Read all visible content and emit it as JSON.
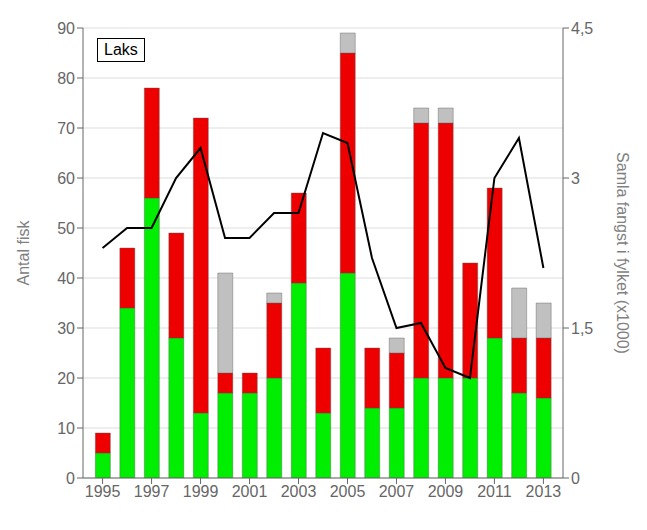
{
  "chart_data": {
    "type": "bar",
    "stacked": true,
    "annotation": "Laks",
    "ylabel": "Antal fisk",
    "y2label": "Samla fangst i fylket (x1000)",
    "x": [
      1995,
      1996,
      1997,
      1998,
      1999,
      2000,
      2001,
      2002,
      2003,
      2004,
      2005,
      2006,
      2007,
      2008,
      2009,
      2010,
      2011,
      2012,
      2013
    ],
    "xlim": [
      1994.2,
      2013.8
    ],
    "xticks": [
      1995,
      1997,
      1999,
      2001,
      2003,
      2005,
      2007,
      2009,
      2011,
      2013
    ],
    "ylim": [
      0,
      90
    ],
    "yticks": [
      0,
      10,
      20,
      30,
      40,
      50,
      60,
      70,
      80,
      90
    ],
    "y2lim": [
      0,
      4.5
    ],
    "y2ticks": [
      0,
      {
        "value": 1.5,
        "label": "1,5"
      },
      3,
      {
        "value": 4.5,
        "label": "4,5"
      }
    ],
    "grid": true,
    "series": [
      {
        "type": "bar",
        "color": "#00EE00",
        "values": [
          5,
          34,
          56,
          28,
          13,
          17,
          17,
          20,
          39,
          13,
          41,
          14,
          14,
          20,
          20,
          20,
          28,
          17,
          16
        ]
      },
      {
        "type": "bar",
        "color": "#EE0000",
        "values": [
          4,
          12,
          22,
          21,
          59,
          4,
          4,
          15,
          18,
          13,
          44,
          12,
          11,
          51,
          51,
          23,
          30,
          11,
          12
        ]
      },
      {
        "type": "bar",
        "color": "#C0C0C0",
        "values": [
          0,
          0,
          0,
          0,
          0,
          20,
          0,
          2,
          0,
          0,
          4,
          0,
          3,
          3,
          3,
          0,
          0,
          10,
          7
        ]
      },
      {
        "type": "line",
        "axis": "y2",
        "color": "#000000",
        "values": [
          2.3,
          2.5,
          2.5,
          3.0,
          3.3,
          2.4,
          2.4,
          2.65,
          2.65,
          3.45,
          3.35,
          2.2,
          1.5,
          1.55,
          1.1,
          1.0,
          3.0,
          3.4,
          2.1
        ]
      }
    ]
  }
}
